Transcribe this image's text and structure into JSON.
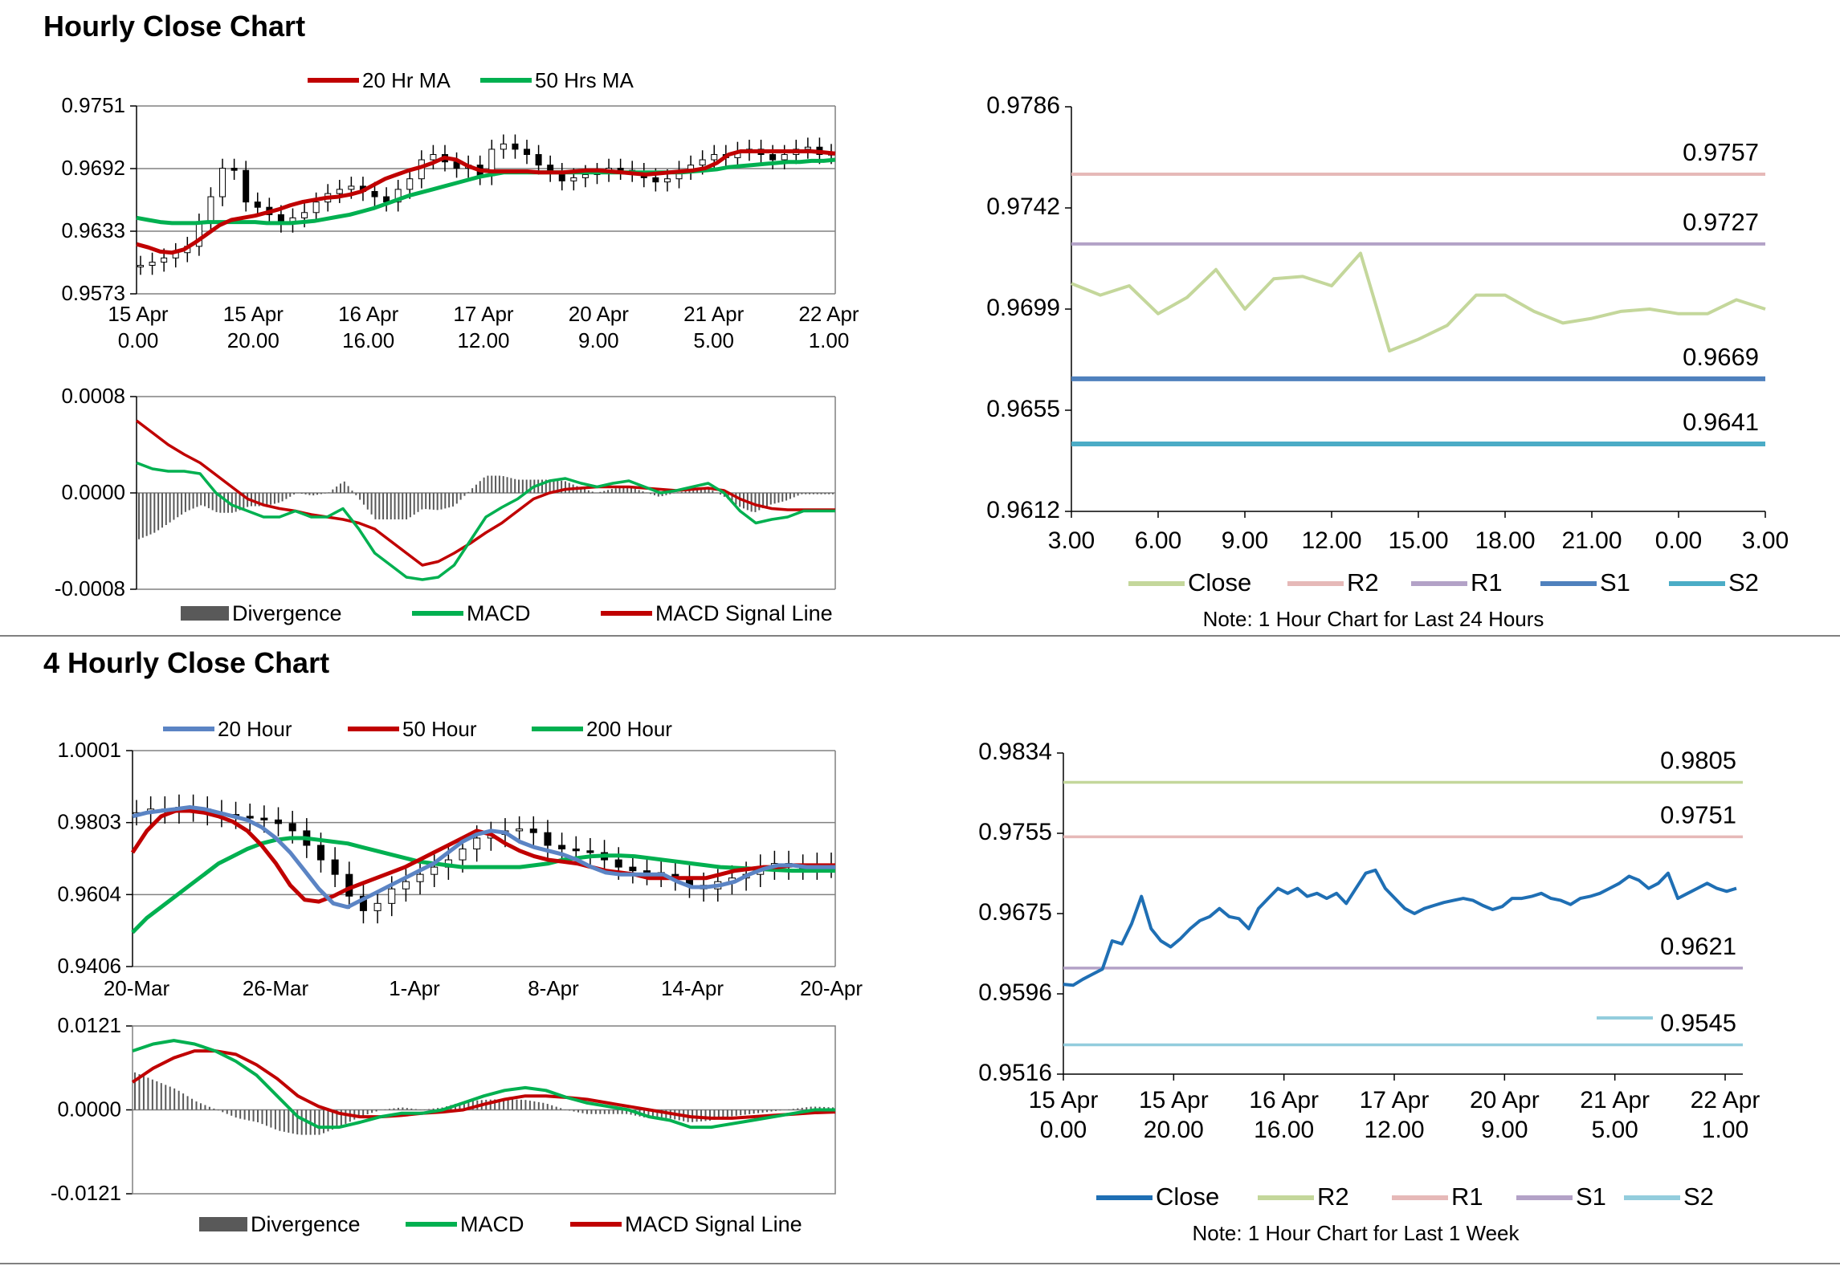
{
  "sections": {
    "hourly_title": "Hourly Close Chart",
    "four_hourly_title": "4 Hourly Close Chart"
  },
  "colors": {
    "dark_red": "#c00000",
    "green": "#00b050",
    "blue_ma": "#5b84c4",
    "divergence": "#595959",
    "close_light": "#c4d79b",
    "r2_pink": "#e6b9b8",
    "r1_lilac": "#b3a2c7",
    "s1_blue": "#4f81bd",
    "s2_teal": "#4bacc6",
    "close_blue": "#1f6fb4",
    "r2_green": "#c4d79b",
    "s2_light": "#93cddd"
  },
  "chart_data": [
    {
      "id": "hourly_price",
      "type": "candlestick",
      "title": "",
      "legend": [
        "20 Hr MA",
        "50 Hrs MA"
      ],
      "y_ticks": [
        "0.9751",
        "0.9692",
        "0.9633",
        "0.9573"
      ],
      "ylim": [
        0.9573,
        0.9751
      ],
      "x_tick_labels": [
        [
          "15 Apr",
          "0.00"
        ],
        [
          "15 Apr",
          "20.00"
        ],
        [
          "16 Apr",
          "16.00"
        ],
        [
          "17 Apr",
          "12.00"
        ],
        [
          "20 Apr",
          "9.00"
        ],
        [
          "21 Apr",
          "5.00"
        ],
        [
          "22 Apr",
          "1.00"
        ]
      ],
      "close": [
        0.96,
        0.9603,
        0.9607,
        0.9612,
        0.9618,
        0.964,
        0.9665,
        0.9692,
        0.969,
        0.966,
        0.9655,
        0.9648,
        0.964,
        0.9645,
        0.965,
        0.966,
        0.9668,
        0.9672,
        0.9675,
        0.967,
        0.9665,
        0.966,
        0.9672,
        0.9682,
        0.97,
        0.9705,
        0.9698,
        0.9692,
        0.9695,
        0.9685,
        0.971,
        0.9715,
        0.971,
        0.9705,
        0.9695,
        0.9688,
        0.968,
        0.9683,
        0.9686,
        0.9688,
        0.9692,
        0.969,
        0.9688,
        0.9683,
        0.9679,
        0.9682,
        0.969,
        0.9695,
        0.97,
        0.9705,
        0.9702,
        0.9708,
        0.971,
        0.9705,
        0.97,
        0.9705,
        0.971,
        0.9712,
        0.9705,
        0.9706
      ],
      "ma20": [
        0.962,
        0.9617,
        0.9613,
        0.9612,
        0.9615,
        0.9622,
        0.963,
        0.9638,
        0.9643,
        0.9645,
        0.9647,
        0.965,
        0.9653,
        0.9657,
        0.966,
        0.9662,
        0.9664,
        0.9665,
        0.9667,
        0.967,
        0.9676,
        0.9682,
        0.9686,
        0.969,
        0.9693,
        0.9697,
        0.9702,
        0.97,
        0.9694,
        0.969,
        0.9689,
        0.9689,
        0.9689,
        0.9689,
        0.9688,
        0.9688,
        0.9688,
        0.9689,
        0.969,
        0.969,
        0.9689,
        0.9688,
        0.9687,
        0.9686,
        0.9687,
        0.9688,
        0.9689,
        0.969,
        0.9692,
        0.9697,
        0.9705,
        0.9708,
        0.9708,
        0.9708,
        0.9708,
        0.9708,
        0.9708,
        0.9708,
        0.9707,
        0.9706
      ],
      "ma50": [
        0.9645,
        0.9643,
        0.9641,
        0.964,
        0.964,
        0.964,
        0.9641,
        0.9641,
        0.9641,
        0.9641,
        0.9641,
        0.964,
        0.964,
        0.964,
        0.9641,
        0.9642,
        0.9644,
        0.9646,
        0.9648,
        0.9651,
        0.9654,
        0.9658,
        0.9662,
        0.9666,
        0.9669,
        0.9672,
        0.9675,
        0.9678,
        0.9681,
        0.9684,
        0.9686,
        0.9688,
        0.9688,
        0.9688,
        0.9688,
        0.9688,
        0.9688,
        0.9688,
        0.9688,
        0.9688,
        0.9688,
        0.9688,
        0.9688,
        0.9688,
        0.9688,
        0.9688,
        0.9688,
        0.9689,
        0.969,
        0.9691,
        0.9693,
        0.9694,
        0.9695,
        0.9696,
        0.9697,
        0.9698,
        0.9698,
        0.9699,
        0.9699,
        0.97
      ]
    },
    {
      "id": "hourly_macd",
      "type": "line+bar",
      "legend": [
        "Divergence",
        "MACD",
        "MACD Signal Line"
      ],
      "y_ticks": [
        "0.0008",
        "0.0000",
        "-0.0008"
      ],
      "ylim": [
        -0.0008,
        0.0008
      ],
      "macd": [
        0.00025,
        0.0002,
        0.00018,
        0.00018,
        0.00016,
        0.0,
        -0.0001,
        -0.00015,
        -0.0002,
        -0.0002,
        -0.00015,
        -0.0002,
        -0.0002,
        -0.00013,
        -0.0003,
        -0.0005,
        -0.0006,
        -0.0007,
        -0.00072,
        -0.0007,
        -0.0006,
        -0.0004,
        -0.0002,
        -0.00012,
        -5e-05,
        5e-05,
        0.0001,
        0.00012,
        8e-05,
        5e-05,
        8e-05,
        0.0001,
        5e-05,
        0.0,
        2e-05,
        5e-05,
        8e-05,
        0.0,
        -0.00015,
        -0.00025,
        -0.00022,
        -0.0002,
        -0.00015,
        -0.00015,
        -0.00015
      ],
      "signal": [
        0.0006,
        0.0005,
        0.0004,
        0.00032,
        0.00025,
        0.00015,
        5e-05,
        -5e-05,
        -0.0001,
        -0.00013,
        -0.00015,
        -0.00018,
        -0.0002,
        -0.00022,
        -0.00025,
        -0.0003,
        -0.0004,
        -0.0005,
        -0.0006,
        -0.00057,
        -0.0005,
        -0.00042,
        -0.00033,
        -0.00025,
        -0.00015,
        -5e-05,
        0.0,
        3e-05,
        4e-05,
        5e-05,
        5e-05,
        5e-05,
        4e-05,
        3e-05,
        2e-05,
        3e-05,
        4e-05,
        2e-05,
        -5e-05,
        -0.0001,
        -0.00013,
        -0.00014,
        -0.00014,
        -0.00014,
        -0.00014
      ],
      "divergence_visible": true
    },
    {
      "id": "hourly_levels_24h",
      "type": "line",
      "legend": [
        "Close",
        "R2",
        "R1",
        "S1",
        "S2"
      ],
      "note": "Note: 1 Hour Chart for Last 24 Hours",
      "y_ticks": [
        "0.9786",
        "0.9742",
        "0.9699",
        "0.9655",
        "0.9612"
      ],
      "ylim": [
        0.9612,
        0.9786
      ],
      "x_ticks": [
        "3.00",
        "6.00",
        "9.00",
        "12.00",
        "15.00",
        "18.00",
        "21.00",
        "0.00",
        "3.00"
      ],
      "close": [
        0.971,
        0.9705,
        0.9709,
        0.9697,
        0.9704,
        0.9716,
        0.9699,
        0.9712,
        0.9713,
        0.9709,
        0.9723,
        0.9681,
        0.9686,
        0.9692,
        0.9705,
        0.9705,
        0.9698,
        0.9693,
        0.9695,
        0.9698,
        0.9699,
        0.9697,
        0.9697,
        0.9703,
        0.9699
      ],
      "levels": [
        {
          "name": "R2",
          "value": 0.9757,
          "label": "0.9757"
        },
        {
          "name": "R1",
          "value": 0.9727,
          "label": "0.9727"
        },
        {
          "name": "S1",
          "value": 0.9669,
          "label": "0.9669"
        },
        {
          "name": "S2",
          "value": 0.9641,
          "label": "0.9641"
        }
      ]
    },
    {
      "id": "four_hourly_price",
      "type": "candlestick",
      "legend": [
        "20 Hour",
        "50 Hour",
        "200 Hour"
      ],
      "y_ticks": [
        "1.0001",
        "0.9803",
        "0.9604",
        "0.9406"
      ],
      "ylim": [
        0.9406,
        1.0001
      ],
      "x_ticks": [
        "20-Mar",
        "26-Mar",
        "1-Apr",
        "8-Apr",
        "14-Apr",
        "20-Apr"
      ],
      "close": [
        0.983,
        0.984,
        0.9835,
        0.9845,
        0.984,
        0.983,
        0.9825,
        0.982,
        0.9815,
        0.981,
        0.98,
        0.978,
        0.974,
        0.97,
        0.966,
        0.96,
        0.956,
        0.958,
        0.962,
        0.964,
        0.966,
        0.968,
        0.97,
        0.973,
        0.976,
        0.977,
        0.978,
        0.9785,
        0.9775,
        0.974,
        0.973,
        0.9725,
        0.972,
        0.97,
        0.968,
        0.967,
        0.9665,
        0.966,
        0.965,
        0.963,
        0.962,
        0.964,
        0.965,
        0.966,
        0.968,
        0.969,
        0.968,
        0.968,
        0.9685,
        0.9685
      ],
      "ma20": [
        0.982,
        0.983,
        0.9835,
        0.984,
        0.9845,
        0.984,
        0.983,
        0.982,
        0.981,
        0.979,
        0.976,
        0.972,
        0.967,
        0.962,
        0.958,
        0.957,
        0.959,
        0.961,
        0.963,
        0.965,
        0.967,
        0.969,
        0.972,
        0.975,
        0.977,
        0.978,
        0.9775,
        0.975,
        0.9735,
        0.9725,
        0.9715,
        0.97,
        0.968,
        0.9665,
        0.966,
        0.966,
        0.966,
        0.966,
        0.964,
        0.9625,
        0.9625,
        0.963,
        0.964,
        0.966,
        0.9675,
        0.9685,
        0.9685,
        0.968,
        0.968,
        0.968
      ],
      "ma50": [
        0.972,
        0.978,
        0.982,
        0.9835,
        0.9835,
        0.983,
        0.982,
        0.9805,
        0.978,
        0.974,
        0.969,
        0.963,
        0.959,
        0.9585,
        0.96,
        0.962,
        0.9635,
        0.965,
        0.9665,
        0.968,
        0.97,
        0.972,
        0.974,
        0.976,
        0.978,
        0.977,
        0.9745,
        0.9725,
        0.971,
        0.97,
        0.9695,
        0.969,
        0.968,
        0.967,
        0.9665,
        0.966,
        0.965,
        0.965,
        0.965,
        0.965,
        0.965,
        0.966,
        0.967,
        0.9675,
        0.968,
        0.968,
        0.9685,
        0.9685,
        0.9685,
        0.9685
      ],
      "ma200": [
        0.95,
        0.954,
        0.957,
        0.96,
        0.963,
        0.966,
        0.969,
        0.971,
        0.973,
        0.9745,
        0.9755,
        0.976,
        0.976,
        0.9755,
        0.975,
        0.9745,
        0.9735,
        0.9725,
        0.9715,
        0.9705,
        0.9695,
        0.969,
        0.9685,
        0.968,
        0.968,
        0.968,
        0.968,
        0.968,
        0.9685,
        0.969,
        0.97,
        0.9705,
        0.971,
        0.9712,
        0.9712,
        0.971,
        0.9705,
        0.97,
        0.9695,
        0.969,
        0.9685,
        0.968,
        0.9678,
        0.9676,
        0.9674,
        0.9672,
        0.967,
        0.967,
        0.967,
        0.967
      ]
    },
    {
      "id": "four_hourly_macd",
      "type": "line+bar",
      "legend": [
        "Divergence",
        "MACD",
        "MACD Signal Line"
      ],
      "y_ticks": [
        "0.0121",
        "0.0000",
        "-0.0121"
      ],
      "ylim": [
        -0.0121,
        0.0121
      ],
      "macd": [
        0.0085,
        0.0095,
        0.01,
        0.0095,
        0.0085,
        0.007,
        0.005,
        0.002,
        -0.001,
        -0.0025,
        -0.0025,
        -0.0018,
        -0.001,
        -0.0005,
        -0.0005,
        0.0,
        0.001,
        0.002,
        0.0028,
        0.0032,
        0.0028,
        0.0018,
        0.001,
        0.0005,
        0.0,
        -0.001,
        -0.0015,
        -0.0025,
        -0.0025,
        -0.002,
        -0.0015,
        -0.001,
        -0.0005,
        0.0,
        0.0
      ],
      "signal": [
        0.004,
        0.006,
        0.0075,
        0.0085,
        0.0085,
        0.008,
        0.0065,
        0.0045,
        0.002,
        0.0005,
        -0.0005,
        -0.001,
        -0.001,
        -0.0008,
        -0.0005,
        -0.0003,
        0.0,
        0.0008,
        0.0015,
        0.002,
        0.002,
        0.0018,
        0.0015,
        0.001,
        0.0005,
        0.0,
        -0.0005,
        -0.001,
        -0.0012,
        -0.0012,
        -0.001,
        -0.0008,
        -0.0006,
        -0.0004,
        -0.0003
      ],
      "divergence_visible": true
    },
    {
      "id": "weekly_levels",
      "type": "line",
      "legend": [
        "Close",
        "R2",
        "R1",
        "S1",
        "S2"
      ],
      "note": "Note: 1 Hour Chart for Last 1 Week",
      "y_ticks": [
        "0.9834",
        "0.9755",
        "0.9675",
        "0.9596",
        "0.9516"
      ],
      "ylim": [
        0.9516,
        0.9834
      ],
      "x_tick_labels": [
        [
          "15 Apr",
          "0.00"
        ],
        [
          "15 Apr",
          "20.00"
        ],
        [
          "16 Apr",
          "16.00"
        ],
        [
          "17 Apr",
          "12.00"
        ],
        [
          "20 Apr",
          "9.00"
        ],
        [
          "21 Apr",
          "5.00"
        ],
        [
          "22 Apr",
          "1.00"
        ]
      ],
      "close": [
        0.9605,
        0.9604,
        0.961,
        0.9615,
        0.962,
        0.9648,
        0.9645,
        0.9665,
        0.9692,
        0.966,
        0.9648,
        0.9642,
        0.965,
        0.966,
        0.9668,
        0.9672,
        0.968,
        0.9672,
        0.967,
        0.966,
        0.968,
        0.969,
        0.97,
        0.9695,
        0.97,
        0.9692,
        0.9695,
        0.969,
        0.9695,
        0.9685,
        0.97,
        0.9715,
        0.9718,
        0.97,
        0.969,
        0.968,
        0.9675,
        0.968,
        0.9683,
        0.9686,
        0.9688,
        0.969,
        0.9688,
        0.9683,
        0.9679,
        0.9682,
        0.969,
        0.969,
        0.9692,
        0.9695,
        0.969,
        0.9688,
        0.9684,
        0.969,
        0.9692,
        0.9695,
        0.97,
        0.9705,
        0.9712,
        0.9708,
        0.97,
        0.9705,
        0.9715,
        0.969,
        0.9695,
        0.97,
        0.9705,
        0.97,
        0.9697,
        0.97
      ],
      "levels": [
        {
          "name": "R2",
          "value": 0.9805,
          "label": "0.9805"
        },
        {
          "name": "R1",
          "value": 0.9751,
          "label": "0.9751"
        },
        {
          "name": "S1",
          "value": 0.9621,
          "label": "0.9621"
        },
        {
          "name": "S2",
          "value": 0.9545,
          "label": "0.9545"
        }
      ]
    }
  ]
}
